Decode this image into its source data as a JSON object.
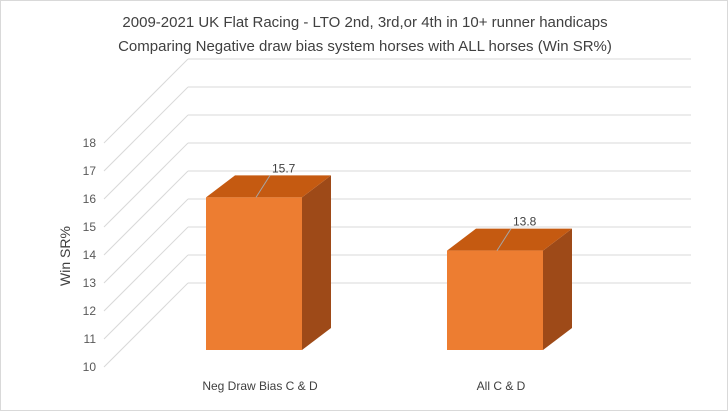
{
  "chart_data": {
    "type": "bar",
    "style": "3d-column",
    "title_lines": [
      "2009-2021 UK Flat Racing - LTO 2nd, 3rd,or 4th in 10+ runner handicaps",
      "Comparing Negative draw bias system horses with ALL horses (Win SR%)"
    ],
    "ylabel": "Win SR%",
    "xlabel": "",
    "ylim": [
      10,
      18
    ],
    "yticks": [
      "10",
      "11",
      "12",
      "13",
      "14",
      "15",
      "16",
      "17",
      "18"
    ],
    "categories": [
      "Neg Draw Bias C & D",
      "All C & D"
    ],
    "values": [
      15.7,
      13.8
    ],
    "data_labels": [
      "15.7",
      "13.8"
    ],
    "grid": true,
    "legend": "none",
    "colors": {
      "front": "#ED7D31",
      "top": "#C55A11",
      "side": "#9E4A18",
      "grid": "#d9d9d9"
    }
  }
}
